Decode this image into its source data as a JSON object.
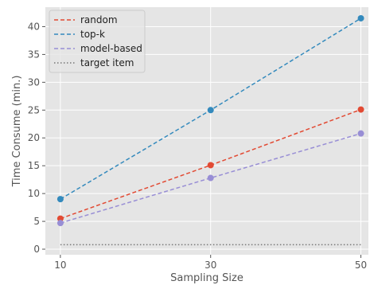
{
  "chart_data": {
    "type": "line",
    "style": "ggplot",
    "title": "",
    "xlabel": "Sampling Size",
    "ylabel": "Time Consume (min.)",
    "x": [
      10,
      30,
      50
    ],
    "x_tick_labels": [
      "10",
      "30",
      "50"
    ],
    "xlim": [
      8,
      51
    ],
    "ylim": [
      -1,
      43.5
    ],
    "y_ticks": [
      0,
      5,
      10,
      15,
      20,
      25,
      30,
      35,
      40
    ],
    "y_tick_labels": [
      "0",
      "5",
      "10",
      "15",
      "20",
      "25",
      "30",
      "35",
      "40"
    ],
    "grid": true,
    "legend_position": "top-left",
    "series": [
      {
        "name": "random",
        "values": [
          5.5,
          15.1,
          25.1
        ],
        "color": "#E24A33",
        "linestyle": "dashed",
        "markers": true
      },
      {
        "name": "top-k",
        "values": [
          9.0,
          25.0,
          41.5
        ],
        "color": "#348ABD",
        "linestyle": "dashed",
        "markers": true
      },
      {
        "name": "model-based",
        "values": [
          4.7,
          12.8,
          20.8
        ],
        "color": "#988ED5",
        "linestyle": "dashed",
        "markers": true
      },
      {
        "name": "target item",
        "values": [
          0.8,
          0.8,
          0.8
        ],
        "color": "#777777",
        "linestyle": "dotted",
        "markers": false
      }
    ]
  }
}
